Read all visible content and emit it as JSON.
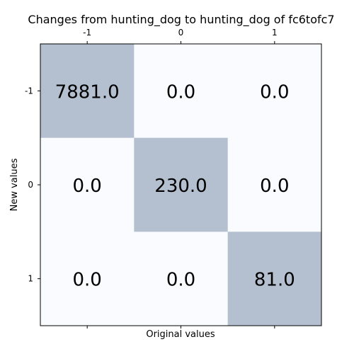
{
  "chart_data": {
    "type": "heatmap",
    "title": "Changes from hunting_dog to hunting_dog of fc6tofc7",
    "xlabel": "Original values",
    "ylabel": "New values",
    "x_categories": [
      "-1",
      "0",
      "1"
    ],
    "y_categories": [
      "-1",
      "0",
      "1"
    ],
    "values": [
      [
        7881.0,
        0.0,
        0.0
      ],
      [
        0.0,
        230.0,
        0.0
      ],
      [
        0.0,
        0.0,
        81.0
      ]
    ],
    "cell_labels": [
      [
        "7881.0",
        "0.0",
        "0.0"
      ],
      [
        "0.0",
        "230.0",
        "0.0"
      ],
      [
        "0.0",
        "0.0",
        "81.0"
      ]
    ],
    "colors": {
      "high": "#b4bfd0",
      "low": "#fafbfe",
      "axis": "#000000"
    },
    "x_ticks_position": "top",
    "grid": false,
    "legend": "none"
  }
}
